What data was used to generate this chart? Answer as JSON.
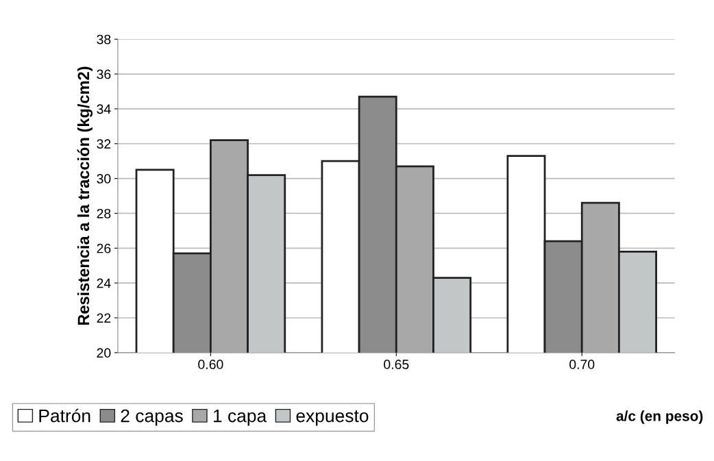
{
  "chart_data": {
    "type": "bar",
    "xlabel": "a/c (en peso)",
    "ylabel": "Resistencia a la tracción (kg/cm2)",
    "categories": [
      "0.60",
      "0.65",
      "0.70"
    ],
    "series": [
      {
        "name": "Patrón",
        "color": "#ffffff",
        "values": [
          30.5,
          31.0,
          31.3
        ]
      },
      {
        "name": "2 capas",
        "color": "#8c8c8c",
        "values": [
          25.7,
          34.7,
          26.4
        ]
      },
      {
        "name": "1 capa",
        "color": "#a8a8a8",
        "values": [
          32.2,
          30.7,
          28.6
        ]
      },
      {
        "name": "expuesto",
        "color": "#c3c6c6",
        "values": [
          30.2,
          24.3,
          25.8
        ]
      }
    ],
    "ylim": [
      20,
      38
    ],
    "yticks": [
      20,
      22,
      24,
      26,
      28,
      30,
      32,
      34,
      36,
      38
    ],
    "grid": "y",
    "legend": "bottom left"
  }
}
